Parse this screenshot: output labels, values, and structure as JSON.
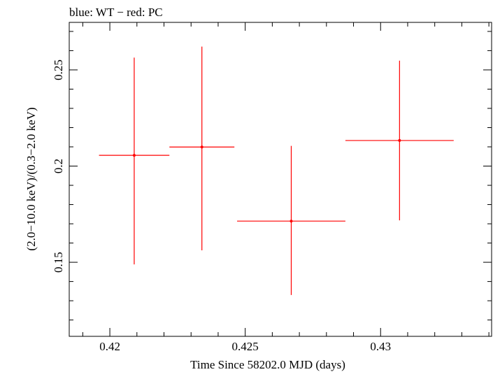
{
  "chart_data": {
    "type": "scatter",
    "title": "blue: WT − red: PC",
    "xlabel": "Time Since 58202.0 MJD (days)",
    "ylabel": "(2.0−10.0 keV)/(0.3−2.0 keV)",
    "xlim": [
      0.4185,
      0.4341
    ],
    "ylim": [
      0.1115,
      0.2747
    ],
    "x_ticks": [
      {
        "value": 0.42,
        "label": "0.42"
      },
      {
        "value": 0.425,
        "label": "0.425"
      },
      {
        "value": 0.43,
        "label": "0.43"
      }
    ],
    "y_ticks": [
      {
        "value": 0.15,
        "label": "0.15"
      },
      {
        "value": 0.2,
        "label": "0.2"
      },
      {
        "value": 0.25,
        "label": "0.25"
      }
    ],
    "grid": false,
    "series": [
      {
        "name": "PC",
        "color": "#ff0000",
        "points": [
          {
            "x": 0.4209,
            "y": 0.2056,
            "xerr": 0.0013,
            "yerr_low": 0.0567,
            "yerr_high": 0.0508
          },
          {
            "x": 0.4234,
            "y": 0.2099,
            "xerr": 0.0012,
            "yerr_low": 0.0537,
            "yerr_high": 0.0522
          },
          {
            "x": 0.4267,
            "y": 0.1714,
            "xerr": 0.002,
            "yerr_low": 0.0384,
            "yerr_high": 0.0391
          },
          {
            "x": 0.4307,
            "y": 0.2133,
            "xerr": 0.002,
            "yerr_low": 0.0415,
            "yerr_high": 0.0415
          }
        ]
      }
    ]
  }
}
